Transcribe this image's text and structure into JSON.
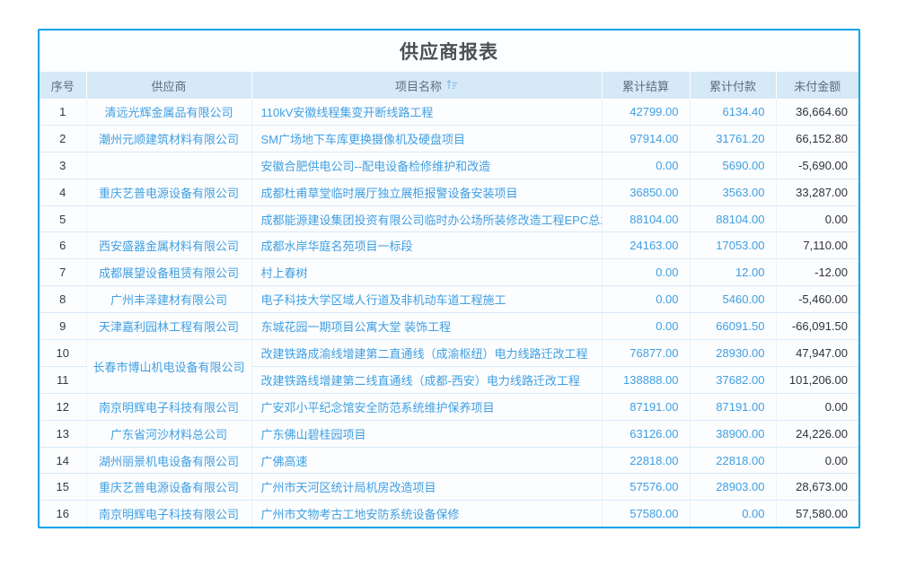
{
  "title": "供应商报表",
  "colors": {
    "accent_border": "#0aa3e8",
    "header_bg": "#d6e9f7",
    "header_text": "#5c6e7e",
    "link_blue": "#3f9fe1",
    "dark_text": "#303338",
    "row_line": "#d9eaf8"
  },
  "table": {
    "columns": [
      "序号",
      "供应商",
      "项目名称",
      "累计结算",
      "累计付款",
      "未付金额"
    ],
    "sort_icon": "sort-ascending-icon",
    "rows": [
      {
        "no": "1",
        "supplier": "清远光辉金属品有限公司",
        "project": "110kV安徽线程集变开断线路工程",
        "settled": "42799.00",
        "paid": "6134.40",
        "unpaid": "36,664.60"
      },
      {
        "no": "2",
        "supplier": "潮州元顺建筑材料有限公司",
        "project": "SM广场地下车库更换摄像机及硬盘项目",
        "settled": "97914.00",
        "paid": "31761.20",
        "unpaid": "66,152.80"
      },
      {
        "no": "3",
        "supplier": "",
        "project": "安徽合肥供电公司--配电设备检修维护和改造",
        "settled": "0.00",
        "paid": "5690.00",
        "unpaid": "-5,690.00"
      },
      {
        "no": "4",
        "supplier": "重庆艺普电源设备有限公司",
        "project": "成都杜甫草堂临时展厅独立展柜报警设备安装项目",
        "settled": "36850.00",
        "paid": "3563.00",
        "unpaid": "33,287.00"
      },
      {
        "no": "5",
        "supplier": "",
        "project": "成都能源建设集团投资有限公司临时办公场所装修改造工程EPC总承包",
        "settled": "88104.00",
        "paid": "88104.00",
        "unpaid": "0.00"
      },
      {
        "no": "6",
        "supplier": "西安盛器金属材料有限公司",
        "project": "成都水岸华庭名苑项目一标段",
        "settled": "24163.00",
        "paid": "17053.00",
        "unpaid": "7,110.00"
      },
      {
        "no": "7",
        "supplier": "成都展望设备租赁有限公司",
        "project": "村上春树",
        "settled": "0.00",
        "paid": "12.00",
        "unpaid": "-12.00"
      },
      {
        "no": "8",
        "supplier": "广州丰泽建材有限公司",
        "project": "电子科技大学区域人行道及非机动车道工程施工",
        "settled": "0.00",
        "paid": "5460.00",
        "unpaid": "-5,460.00"
      },
      {
        "no": "9",
        "supplier": "天津嘉利园林工程有限公司",
        "project": "东城花园一期项目公寓大堂 装饰工程",
        "settled": "0.00",
        "paid": "66091.50",
        "unpaid": "-66,091.50"
      },
      {
        "no": "10",
        "supplier": "长春市博山机电设备有限公司",
        "supplier_rowspan": 2,
        "project": "改建铁路成渝线增建第二直通线（成渝枢纽）电力线路迁改工程",
        "settled": "76877.00",
        "paid": "28930.00",
        "unpaid": "47,947.00"
      },
      {
        "no": "11",
        "project": "改建铁路线增建第二线直通线（成都-西安）电力线路迁改工程",
        "settled": "138888.00",
        "paid": "37682.00",
        "unpaid": "101,206.00"
      },
      {
        "no": "12",
        "supplier": "南京明辉电子科技有限公司",
        "project": "广安邓小平纪念馆安全防范系统维护保养项目",
        "settled": "87191.00",
        "paid": "87191.00",
        "unpaid": "0.00"
      },
      {
        "no": "13",
        "supplier": "广东省河沙材料总公司",
        "project": "广东佛山碧桂园项目",
        "settled": "63126.00",
        "paid": "38900.00",
        "unpaid": "24,226.00"
      },
      {
        "no": "14",
        "supplier": "湖州丽景机电设备有限公司",
        "project": "广佛高速",
        "settled": "22818.00",
        "paid": "22818.00",
        "unpaid": "0.00"
      },
      {
        "no": "15",
        "supplier": "重庆艺普电源设备有限公司",
        "project": "广州市天河区统计局机房改造项目",
        "settled": "57576.00",
        "paid": "28903.00",
        "unpaid": "28,673.00"
      },
      {
        "no": "16",
        "supplier": "南京明辉电子科技有限公司",
        "project": "广州市文物考古工地安防系统设备保修",
        "settled": "57580.00",
        "paid": "0.00",
        "unpaid": "57,580.00"
      }
    ]
  }
}
